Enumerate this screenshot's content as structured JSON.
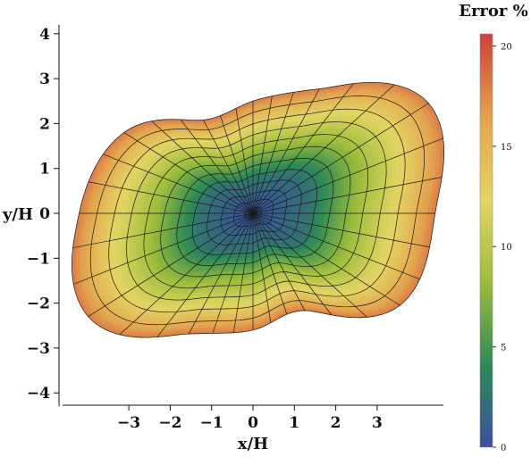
{
  "chart_data": {
    "type": "heatmap",
    "subtype": "radial error map on a distorted polar mesh",
    "xlabel": "x/H",
    "ylabel": "y/H",
    "x_ticks": [
      "−3",
      "−2",
      "−1",
      "0",
      "1",
      "2",
      "3"
    ],
    "x_tick_values": [
      -3,
      -2,
      -1,
      0,
      1,
      2,
      3
    ],
    "y_ticks": [
      "4",
      "3",
      "2",
      "1",
      "0",
      "−1",
      "−2",
      "−3",
      "−4"
    ],
    "y_tick_values": [
      4,
      3,
      2,
      1,
      0,
      -1,
      -2,
      -3,
      -4
    ],
    "xlim": [
      -4.6,
      4.6
    ],
    "ylim": [
      -4.3,
      4.2
    ],
    "colorbar": {
      "title": "Error %",
      "range": [
        0,
        20.6
      ],
      "ticks": [
        "20",
        "15",
        "10",
        "5",
        "0"
      ],
      "tick_values": [
        20,
        15,
        10,
        5,
        0
      ],
      "colormap": [
        "#3b4fa0",
        "#2e8a55",
        "#9dbd3c",
        "#e3d464",
        "#e3a24e",
        "#cf3f3a"
      ]
    },
    "center": [
      0,
      0
    ],
    "error_profile": {
      "radius_fraction": [
        0,
        0.3,
        0.5,
        0.7,
        0.85,
        1.0
      ],
      "error_percent": [
        0,
        2.5,
        7,
        11,
        14,
        18
      ]
    },
    "boundary_radius_by_angle_deg": {
      "angle_deg": [
        0,
        30,
        60,
        90,
        120,
        150,
        180,
        210,
        240,
        270,
        300,
        330
      ],
      "radius": [
        4.4,
        4.9,
        3.2,
        2.5,
        2.4,
        3.6,
        4.2,
        4.6,
        3.1,
        2.6,
        2.5,
        4.1
      ]
    },
    "mesh": {
      "radial_lines": 36,
      "rings": 12
    },
    "grid": false
  }
}
